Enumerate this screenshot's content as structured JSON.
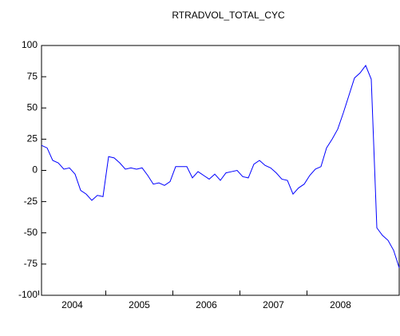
{
  "chart_data": {
    "type": "line",
    "title": "RTRADVOL_TOTAL_CYC",
    "categories": [
      "2004",
      null,
      null,
      null,
      null,
      null,
      null,
      null,
      null,
      null,
      null,
      null,
      "2005",
      null,
      null,
      null,
      null,
      null,
      null,
      null,
      null,
      null,
      null,
      null,
      "2006",
      null,
      null,
      null,
      null,
      null,
      null,
      null,
      null,
      null,
      null,
      null,
      "2007",
      null,
      null,
      null,
      null,
      null,
      null,
      null,
      null,
      null,
      null,
      null,
      "2008",
      null,
      null,
      null,
      null,
      null,
      null,
      null,
      null,
      null,
      null,
      null,
      null,
      null,
      null,
      null,
      null
    ],
    "values": [
      20,
      18,
      8,
      6,
      1,
      2,
      -3,
      -16,
      -19,
      -24,
      -20,
      -21,
      11,
      10,
      6,
      1,
      2,
      1,
      2,
      -4,
      -11,
      -10,
      -12,
      -9,
      3,
      3,
      3,
      -6,
      -1,
      -4,
      -7,
      -3,
      -8,
      -2,
      -1,
      0,
      -5,
      -6,
      5,
      8,
      4,
      2,
      -2,
      -7,
      -8,
      -19,
      -14,
      -11,
      -4,
      1,
      3,
      18,
      25,
      33,
      46,
      60,
      74,
      78,
      84,
      73,
      -46,
      -52,
      -56,
      -64,
      -78
    ],
    "color": "#0000ff",
    "ylim": [
      -100,
      100
    ],
    "yticks": [
      -100,
      -75,
      -50,
      -25,
      0,
      25,
      50,
      75,
      100
    ]
  }
}
